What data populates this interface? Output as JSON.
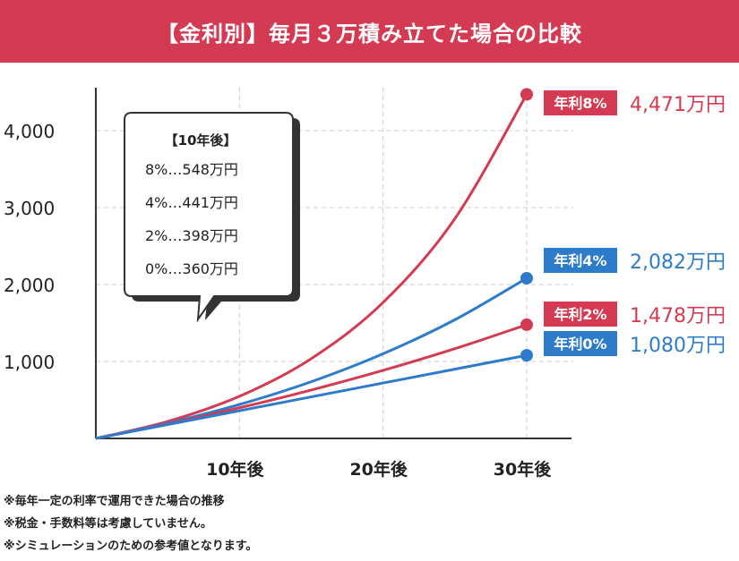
{
  "header": {
    "title": "【金利別】毎月３万積み立てた場合の比較"
  },
  "chart_data": {
    "type": "line",
    "x": [
      0,
      10,
      20,
      30
    ],
    "categories": [
      "10年後",
      "20年後",
      "30年後"
    ],
    "ylim": [
      0,
      4500
    ],
    "yticks": [
      1000,
      2000,
      3000,
      4000
    ],
    "ytick_labels": [
      "1,000",
      "2,000",
      "3,000",
      "4,000"
    ],
    "grid": true,
    "series": [
      {
        "name": "年利8%",
        "color": "#d43b52",
        "end_label": "4,471万円",
        "x": [
          0,
          5,
          10,
          15,
          20,
          25,
          30
        ],
        "values": [
          0,
          220,
          548,
          1037,
          1767,
          2856,
          4471
        ]
      },
      {
        "name": "年利4%",
        "color": "#2d7ccc",
        "end_label": "2,082万円",
        "x": [
          0,
          5,
          10,
          15,
          20,
          25,
          30
        ],
        "values": [
          0,
          199,
          441,
          737,
          1100,
          1542,
          2082
        ]
      },
      {
        "name": "年利2%",
        "color": "#d43b52",
        "end_label": "1,478万円",
        "x": [
          0,
          5,
          10,
          15,
          20,
          25,
          30
        ],
        "values": [
          0,
          189,
          398,
          629,
          884,
          1166,
          1478
        ]
      },
      {
        "name": "年利0%",
        "color": "#2d7ccc",
        "end_label": "1,080万円",
        "x": [
          0,
          5,
          10,
          15,
          20,
          25,
          30
        ],
        "values": [
          0,
          180,
          360,
          540,
          720,
          900,
          1080
        ]
      }
    ],
    "annotation": {
      "title": "【10年後】",
      "lines": [
        "8%…548万円",
        "4%…441万円",
        "2%…398万円",
        "0%…360万円"
      ]
    }
  },
  "notes": [
    "※毎年一定の利率で運用できた場合の推移",
    "※税金・手数料等は考慮していません。",
    "※シミュレーションのための参考値となります。"
  ]
}
